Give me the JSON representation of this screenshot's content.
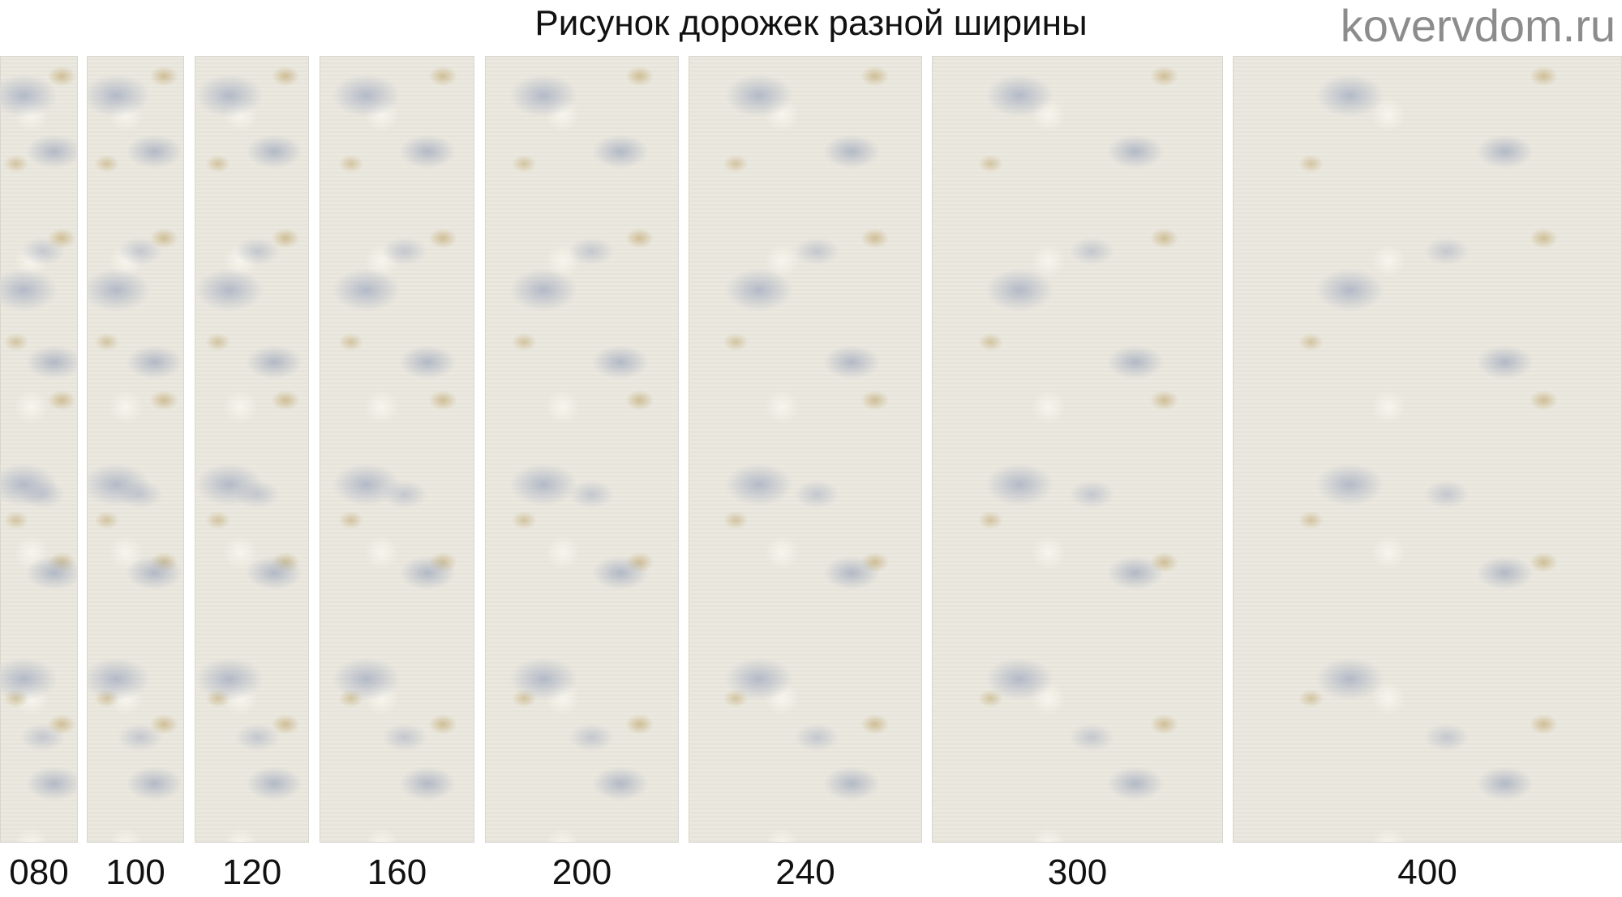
{
  "title": "Рисунок дорожек разной ширины",
  "runners": [
    {
      "label": "080"
    },
    {
      "label": "100"
    },
    {
      "label": "120"
    },
    {
      "label": "160"
    },
    {
      "label": "200"
    },
    {
      "label": "240"
    },
    {
      "label": "300"
    },
    {
      "label": "400"
    }
  ],
  "watermark": "kovervdom.ru",
  "colors": {
    "base": "#ebe8df",
    "blue_grey": "#aab2c4",
    "gold": "#c4ae78"
  }
}
